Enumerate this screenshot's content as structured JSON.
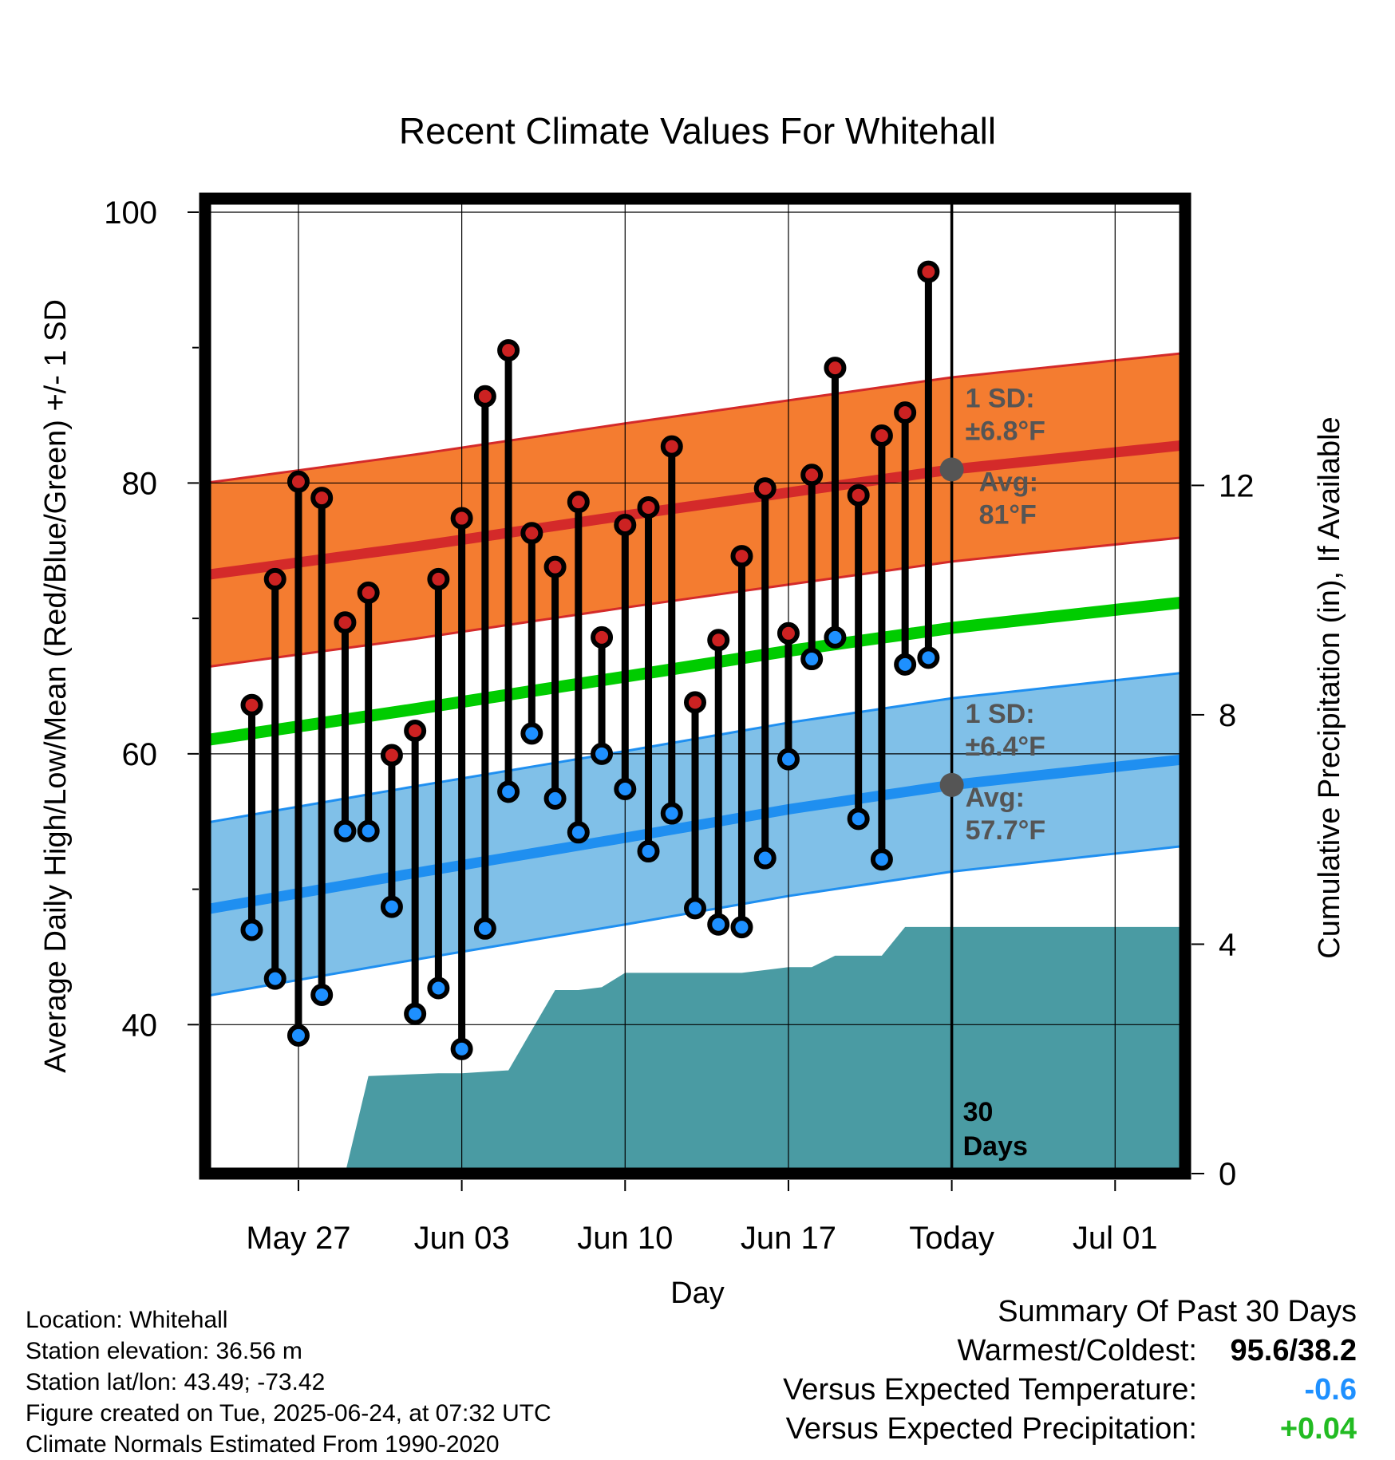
{
  "chart_data": {
    "type": "line",
    "title": "Recent Climate Values For Whitehall",
    "xlabel": "Day",
    "ylabel": "Average Daily High/Low/Mean (Red/Blue/Green) +/- 1 SD",
    "y2label": "Cumulative Precipitation (in), If Available",
    "ylim": [
      29,
      101
    ],
    "y2lim": [
      0,
      17
    ],
    "y_ticks": [
      40,
      60,
      80,
      100
    ],
    "y2_ticks": [
      0,
      4,
      8,
      12
    ],
    "x_range": [
      "2025-05-23",
      "2025-07-04"
    ],
    "x_ticks": [
      {
        "date": "2025-05-27",
        "label": "May 27"
      },
      {
        "date": "2025-06-03",
        "label": "Jun 03"
      },
      {
        "date": "2025-06-10",
        "label": "Jun 10"
      },
      {
        "date": "2025-06-17",
        "label": "Jun 17"
      },
      {
        "date": "2025-06-24",
        "label": "Today"
      },
      {
        "date": "2025-07-01",
        "label": "Jul 01"
      }
    ],
    "grid": true,
    "colors": {
      "high_band": "#F47C30",
      "high_avg": "#D42A2A",
      "low_band": "#80C0E8",
      "low_avg": "#1F8FF0",
      "mean_avg": "#00CC00",
      "precip": "#4A9BA3",
      "high_point": "#CC2222",
      "low_point": "#1E90FF"
    },
    "normals": {
      "dates": [
        "2025-05-23",
        "2025-06-01",
        "2025-06-10",
        "2025-06-17",
        "2025-06-24",
        "2025-07-04"
      ],
      "high_avg": [
        73.2,
        75.3,
        77.6,
        79.3,
        81.0,
        82.8
      ],
      "high_sd": 6.8,
      "low_avg": [
        48.5,
        51.2,
        53.8,
        55.9,
        57.7,
        59.6
      ],
      "low_sd": 6.4,
      "mean_avg": [
        61.0,
        63.3,
        65.7,
        67.6,
        69.3,
        71.2
      ]
    },
    "observed": {
      "dates": [
        "2025-05-25",
        "2025-05-26",
        "2025-05-27",
        "2025-05-28",
        "2025-05-29",
        "2025-05-30",
        "2025-05-31",
        "2025-06-01",
        "2025-06-02",
        "2025-06-03",
        "2025-06-04",
        "2025-06-05",
        "2025-06-06",
        "2025-06-07",
        "2025-06-08",
        "2025-06-09",
        "2025-06-10",
        "2025-06-11",
        "2025-06-12",
        "2025-06-13",
        "2025-06-14",
        "2025-06-15",
        "2025-06-16",
        "2025-06-17",
        "2025-06-18",
        "2025-06-19",
        "2025-06-20",
        "2025-06-21",
        "2025-06-22",
        "2025-06-23"
      ],
      "high": [
        63.6,
        72.9,
        80.1,
        78.9,
        69.7,
        71.9,
        59.9,
        61.7,
        72.9,
        77.4,
        86.4,
        89.8,
        76.3,
        73.8,
        78.6,
        68.6,
        76.9,
        78.2,
        82.7,
        63.8,
        68.4,
        74.6,
        79.6,
        68.9,
        80.6,
        88.5,
        79.1,
        83.5,
        85.2,
        95.6
      ],
      "low": [
        47.0,
        43.4,
        39.2,
        42.2,
        54.3,
        54.3,
        48.7,
        40.8,
        42.7,
        38.2,
        47.1,
        57.2,
        61.5,
        56.7,
        54.2,
        60.0,
        57.4,
        52.8,
        55.6,
        48.6,
        47.4,
        47.2,
        52.3,
        59.6,
        67.0,
        68.6,
        55.2,
        52.2,
        66.6,
        67.1
      ]
    },
    "precip": {
      "dates": [
        "2025-05-23",
        "2025-05-29",
        "2025-05-30",
        "2025-06-02",
        "2025-06-03",
        "2025-06-05",
        "2025-06-06",
        "2025-06-07",
        "2025-06-08",
        "2025-06-09",
        "2025-06-10",
        "2025-06-15",
        "2025-06-16",
        "2025-06-17",
        "2025-06-18",
        "2025-06-19",
        "2025-06-20",
        "2025-06-21",
        "2025-06-22",
        "2025-07-04"
      ],
      "cumulative": [
        0,
        0,
        1.7,
        1.75,
        1.75,
        1.8,
        2.5,
        3.2,
        3.2,
        3.25,
        3.5,
        3.5,
        3.55,
        3.6,
        3.6,
        3.8,
        3.8,
        3.8,
        4.3,
        4.3
      ]
    },
    "annotations": {
      "high_sd_label": "1 SD:",
      "high_sd_value": "±6.8°F",
      "high_avg_label": "Avg:",
      "high_avg_value": "81°F",
      "low_sd_label": "1 SD:",
      "low_sd_value": "±6.4°F",
      "low_avg_label": "Avg:",
      "low_avg_value": "57.7°F",
      "days_number": "30",
      "days_word": "Days"
    }
  },
  "info": {
    "location": "Location: Whitehall",
    "elevation": "Station elevation: 36.56 m",
    "latlon": "Station lat/lon: 43.49; -73.42",
    "created": "Figure created on Tue, 2025-06-24, at 07:32 UTC",
    "normals": "Climate Normals Estimated From 1990-2020"
  },
  "summary": {
    "title": "Summary Of Past 30 Days",
    "warm_cold_label": "Warmest/Coldest:",
    "warm_cold_value": "95.6/38.2",
    "temp_label": "Versus Expected Temperature:",
    "temp_value": "-0.6",
    "temp_color": "#1E90FF",
    "precip_label": "Versus Expected Precipitation:",
    "precip_value": "+0.04",
    "precip_color": "#22BB22"
  }
}
